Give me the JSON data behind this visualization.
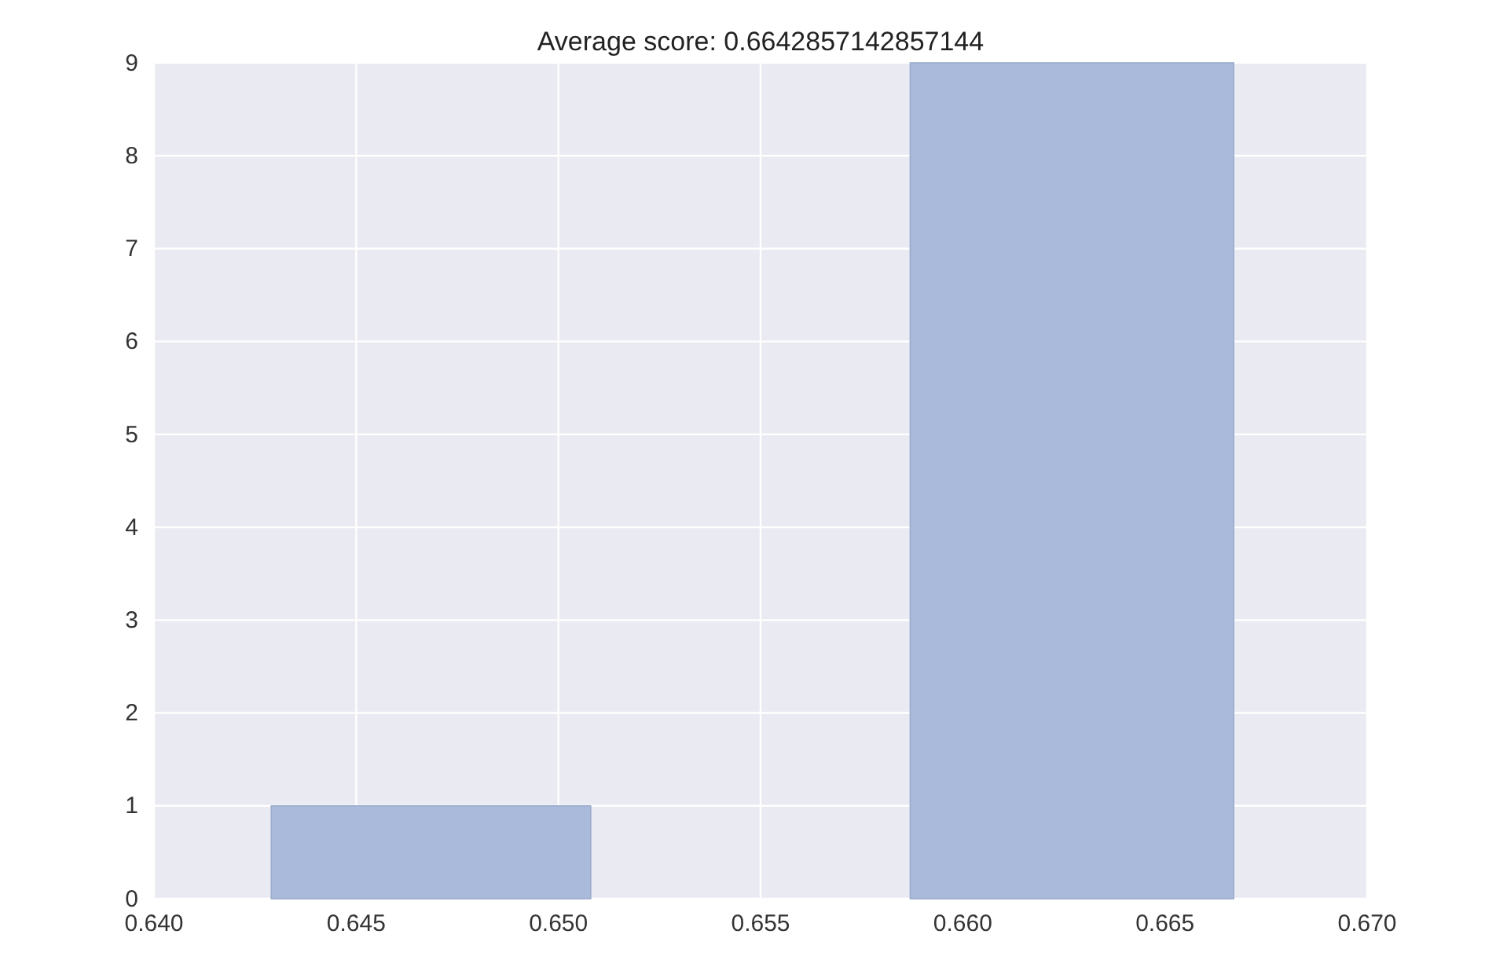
{
  "chart_data": {
    "type": "histogram",
    "title": "Average score: 0.6642857142857144",
    "bins": [
      0.6429,
      0.6508,
      0.6587,
      0.6667
    ],
    "values": [
      1,
      0,
      9
    ],
    "color": "#a9badb",
    "xlim": [
      0.64,
      0.67
    ],
    "xticks": [
      {
        "value": 0.64,
        "label": "0.640"
      },
      {
        "value": 0.645,
        "label": "0.645"
      },
      {
        "value": 0.65,
        "label": "0.650"
      },
      {
        "value": 0.655,
        "label": "0.655"
      },
      {
        "value": 0.66,
        "label": "0.660"
      },
      {
        "value": 0.665,
        "label": "0.665"
      },
      {
        "value": 0.67,
        "label": "0.670"
      }
    ],
    "ylim": [
      0,
      9
    ],
    "yticks": [
      0,
      1,
      2,
      3,
      4,
      5,
      6,
      7,
      8,
      9
    ],
    "grid": true
  }
}
